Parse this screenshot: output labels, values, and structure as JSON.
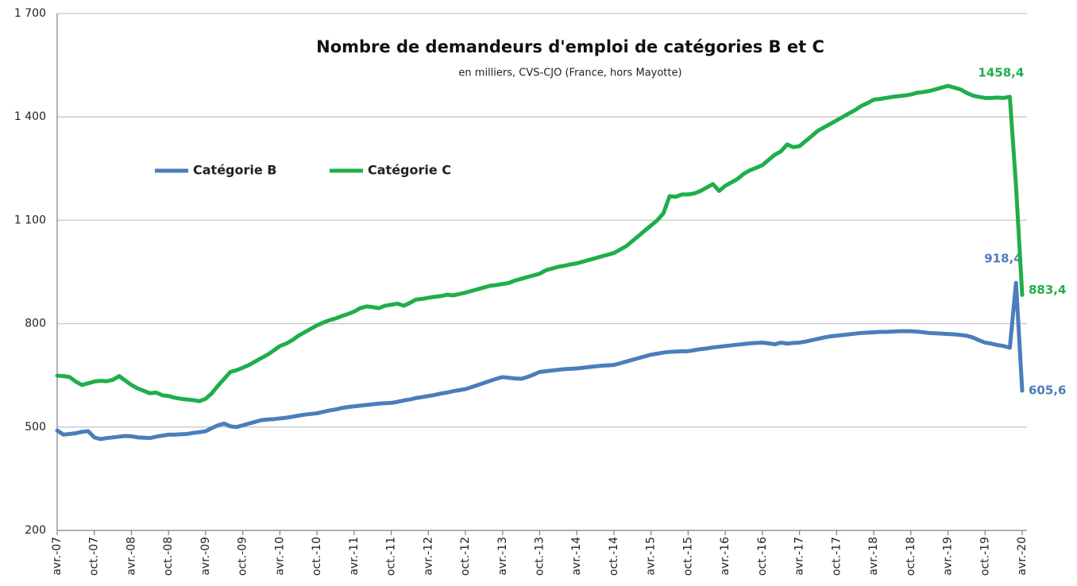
{
  "chart_data": {
    "type": "line",
    "title": "Nombre de demandeurs d'emploi de catégories B et C",
    "subtitle": "en milliers, CVS-CJO (France, hors Mayotte)",
    "legend": "center left",
    "grid": true,
    "ylim": [
      200,
      1700
    ],
    "yticks": [
      200,
      500,
      800,
      {
        "value": 1100,
        "label": "1 100"
      },
      {
        "value": 1400,
        "label": "1 400"
      },
      {
        "value": 1700,
        "label": "1 700"
      }
    ],
    "categories": [
      "avr.-07",
      null,
      null,
      null,
      null,
      null,
      "oct.-07",
      null,
      null,
      null,
      null,
      null,
      "avr.-08",
      null,
      null,
      null,
      null,
      null,
      "oct.-08",
      null,
      null,
      null,
      null,
      null,
      "avr.-09",
      null,
      null,
      null,
      null,
      null,
      "oct.-09",
      null,
      null,
      null,
      null,
      null,
      "avr.-10",
      null,
      null,
      null,
      null,
      null,
      "oct.-10",
      null,
      null,
      null,
      null,
      null,
      "avr.-11",
      null,
      null,
      null,
      null,
      null,
      "oct.-11",
      null,
      null,
      null,
      null,
      null,
      "avr.-12",
      null,
      null,
      null,
      null,
      null,
      "oct.-12",
      null,
      null,
      null,
      null,
      null,
      "avr.-13",
      null,
      null,
      null,
      null,
      null,
      "oct.-13",
      null,
      null,
      null,
      null,
      null,
      "avr.-14",
      null,
      null,
      null,
      null,
      null,
      "oct.-14",
      null,
      null,
      null,
      null,
      null,
      "avr.-15",
      null,
      null,
      null,
      null,
      null,
      "oct.-15",
      null,
      null,
      null,
      null,
      null,
      "avr.-16",
      null,
      null,
      null,
      null,
      null,
      "oct.-16",
      null,
      null,
      null,
      null,
      null,
      "avr.-17",
      null,
      null,
      null,
      null,
      null,
      "oct.-17",
      null,
      null,
      null,
      null,
      null,
      "avr.-18",
      null,
      null,
      null,
      null,
      null,
      "oct.-18",
      null,
      null,
      null,
      null,
      null,
      "avr.-19",
      null,
      null,
      null,
      null,
      null,
      "oct.-19",
      null,
      null,
      null,
      null,
      null,
      "avr.-20"
    ],
    "series": [
      {
        "name": "Catégorie B",
        "color": "#4a7ebb",
        "values": [
          490,
          478,
          480,
          482,
          486,
          488,
          470,
          465,
          468,
          470,
          472,
          474,
          473,
          470,
          469,
          468,
          472,
          475,
          478,
          478,
          479,
          480,
          483,
          485,
          488,
          497,
          505,
          510,
          502,
          500,
          505,
          510,
          515,
          520,
          522,
          523,
          525,
          527,
          530,
          533,
          536,
          538,
          540,
          544,
          548,
          551,
          555,
          558,
          560,
          562,
          564,
          566,
          568,
          569,
          570,
          573,
          577,
          580,
          584,
          587,
          590,
          593,
          597,
          600,
          604,
          607,
          610,
          616,
          622,
          628,
          634,
          640,
          645,
          643,
          641,
          640,
          645,
          652,
          660,
          662,
          664,
          666,
          668,
          669,
          670,
          672,
          674,
          676,
          678,
          679,
          680,
          685,
          690,
          695,
          700,
          705,
          710,
          713,
          716,
          718,
          719,
          720,
          720,
          723,
          726,
          728,
          731,
          733,
          735,
          737,
          739,
          741,
          743,
          744,
          745,
          743,
          740,
          745,
          742,
          744,
          745,
          748,
          752,
          756,
          760,
          763,
          765,
          767,
          769,
          771,
          773,
          774,
          775,
          776,
          776,
          777,
          778,
          778,
          778,
          777,
          775,
          773,
          772,
          771,
          770,
          769,
          767,
          765,
          760,
          752,
          745,
          742,
          738,
          735,
          730,
          918.4,
          605.6
        ],
        "value_labels": {
          "155": "918,4",
          "156": "605,6"
        }
      },
      {
        "name": "Catégorie C",
        "color": "#1fae4b",
        "values": [
          649,
          648,
          645,
          632,
          622,
          627,
          632,
          634,
          633,
          637,
          648,
          635,
          622,
          612,
          605,
          598,
          600,
          592,
          590,
          585,
          582,
          580,
          578,
          575,
          582,
          598,
          620,
          640,
          660,
          665,
          672,
          680,
          690,
          700,
          710,
          722,
          735,
          742,
          752,
          765,
          775,
          785,
          795,
          803,
          810,
          815,
          822,
          828,
          835,
          845,
          850,
          848,
          845,
          852,
          855,
          858,
          852,
          860,
          870,
          872,
          875,
          878,
          880,
          884,
          882,
          886,
          890,
          895,
          900,
          905,
          910,
          912,
          915,
          918,
          925,
          930,
          935,
          940,
          945,
          955,
          960,
          965,
          968,
          972,
          975,
          980,
          985,
          990,
          995,
          1000,
          1005,
          1015,
          1025,
          1040,
          1055,
          1070,
          1085,
          1100,
          1120,
          1170,
          1168,
          1175,
          1175,
          1178,
          1185,
          1195,
          1205,
          1185,
          1200,
          1210,
          1220,
          1235,
          1245,
          1252,
          1260,
          1275,
          1290,
          1300,
          1320,
          1312,
          1315,
          1330,
          1345,
          1360,
          1370,
          1380,
          1390,
          1400,
          1410,
          1420,
          1432,
          1440,
          1450,
          1452,
          1455,
          1458,
          1460,
          1462,
          1465,
          1470,
          1472,
          1475,
          1480,
          1485,
          1490,
          1485,
          1480,
          1470,
          1462,
          1458,
          1455,
          1455,
          1456,
          1455,
          1458.4,
          1200,
          883.4
        ],
        "value_labels": {
          "154": "1458,4",
          "156": "883,4"
        }
      }
    ]
  }
}
